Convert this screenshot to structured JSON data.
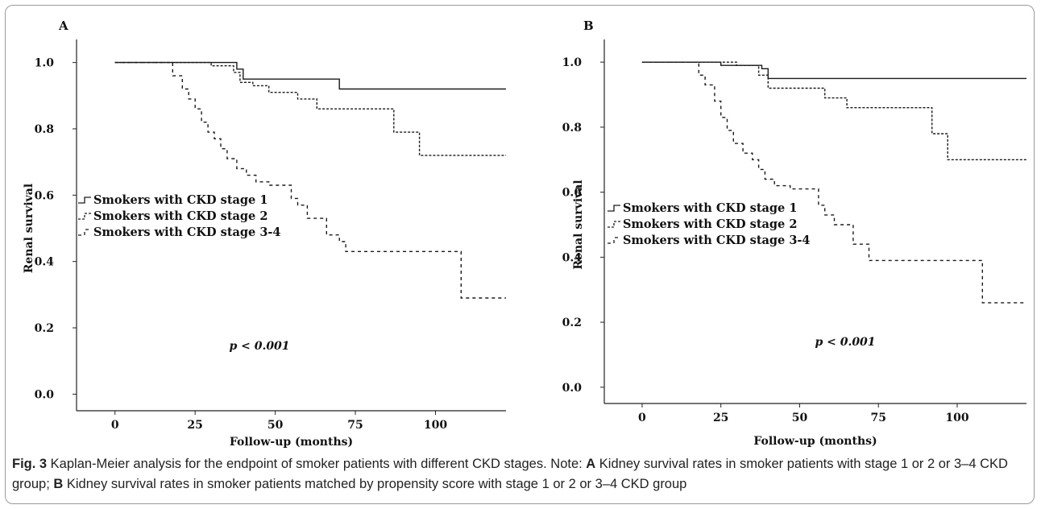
{
  "chart_data": [
    {
      "type": "line",
      "panel_label": "A",
      "xlabel": "Follow-up (months)",
      "ylabel": "Renal survival",
      "xlim": [
        -12,
        122
      ],
      "ylim": [
        -0.05,
        1.05
      ],
      "xticks": [
        0,
        25,
        50,
        75,
        100
      ],
      "yticks": [
        0.0,
        0.2,
        0.4,
        0.6,
        0.8,
        1.0
      ],
      "annotation": "p < 0.001",
      "legend_position": "left",
      "series": [
        {
          "name": "Smokers with CKD stage 1",
          "dash": "solid",
          "x": [
            0,
            38,
            38,
            40,
            40,
            70,
            70,
            122
          ],
          "y": [
            1.0,
            1.0,
            0.98,
            0.98,
            0.95,
            0.95,
            0.92,
            0.92
          ]
        },
        {
          "name": "Smokers with CKD stage 2",
          "dash": "dotted",
          "x": [
            0,
            30,
            30,
            37,
            37,
            39,
            39,
            43,
            43,
            48,
            48,
            57,
            57,
            63,
            63,
            87,
            87,
            95,
            95,
            122
          ],
          "y": [
            1.0,
            1.0,
            0.99,
            0.99,
            0.97,
            0.97,
            0.94,
            0.94,
            0.93,
            0.93,
            0.91,
            0.91,
            0.89,
            0.89,
            0.86,
            0.86,
            0.79,
            0.79,
            0.72,
            0.72
          ]
        },
        {
          "name": "Smokers with CKD stage 3-4",
          "dash": "dashed",
          "x": [
            0,
            18,
            18,
            21,
            21,
            23,
            23,
            25,
            25,
            27,
            27,
            29,
            29,
            31,
            31,
            33,
            33,
            35,
            35,
            38,
            38,
            41,
            41,
            44,
            44,
            48,
            48,
            55,
            55,
            57,
            57,
            60,
            60,
            66,
            66,
            70,
            70,
            72,
            72,
            108,
            108,
            122
          ],
          "y": [
            1.0,
            1.0,
            0.96,
            0.96,
            0.92,
            0.92,
            0.89,
            0.89,
            0.86,
            0.86,
            0.82,
            0.82,
            0.79,
            0.79,
            0.77,
            0.77,
            0.74,
            0.74,
            0.71,
            0.71,
            0.68,
            0.68,
            0.66,
            0.66,
            0.64,
            0.64,
            0.63,
            0.63,
            0.59,
            0.59,
            0.57,
            0.57,
            0.53,
            0.53,
            0.48,
            0.48,
            0.46,
            0.46,
            0.43,
            0.43,
            0.29,
            0.29
          ]
        }
      ]
    },
    {
      "type": "line",
      "panel_label": "B",
      "xlabel": "Follow-up (months)",
      "ylabel": "Renal survival",
      "xlim": [
        -12,
        122
      ],
      "ylim": [
        -0.05,
        1.05
      ],
      "xticks": [
        0,
        25,
        50,
        75,
        100
      ],
      "yticks": [
        0.0,
        0.2,
        0.4,
        0.6,
        0.8,
        1.0
      ],
      "annotation": "p < 0.001",
      "legend_position": "left",
      "series": [
        {
          "name": "Smokers with CKD stage 1",
          "dash": "solid",
          "x": [
            0,
            25,
            25,
            38,
            38,
            40,
            40,
            122
          ],
          "y": [
            1.0,
            1.0,
            0.99,
            0.99,
            0.98,
            0.98,
            0.95,
            0.95
          ]
        },
        {
          "name": "Smokers with CKD stage 2",
          "dash": "dotted",
          "x": [
            0,
            30,
            30,
            37,
            37,
            40,
            40,
            58,
            58,
            65,
            65,
            92,
            92,
            97,
            97,
            122
          ],
          "y": [
            1.0,
            1.0,
            0.99,
            0.99,
            0.96,
            0.96,
            0.92,
            0.92,
            0.89,
            0.89,
            0.86,
            0.86,
            0.78,
            0.78,
            0.7,
            0.7
          ]
        },
        {
          "name": "Smokers with CKD stage 3-4",
          "dash": "dashed",
          "x": [
            0,
            18,
            18,
            20,
            20,
            23,
            23,
            25,
            25,
            27,
            27,
            29,
            29,
            32,
            32,
            35,
            35,
            37,
            37,
            39,
            39,
            42,
            42,
            47,
            47,
            56,
            56,
            58,
            58,
            61,
            61,
            67,
            67,
            72,
            72,
            108,
            108,
            122
          ],
          "y": [
            1.0,
            1.0,
            0.96,
            0.96,
            0.93,
            0.93,
            0.88,
            0.88,
            0.83,
            0.83,
            0.79,
            0.79,
            0.75,
            0.75,
            0.72,
            0.72,
            0.7,
            0.7,
            0.67,
            0.67,
            0.64,
            0.64,
            0.62,
            0.62,
            0.61,
            0.61,
            0.56,
            0.56,
            0.53,
            0.53,
            0.5,
            0.5,
            0.44,
            0.44,
            0.39,
            0.39,
            0.26,
            0.26
          ]
        }
      ]
    }
  ],
  "caption": {
    "fig_label": "Fig. 3",
    "intro": " Kaplan-Meier analysis for the endpoint of smoker patients with different CKD stages. Note: ",
    "a_label": "A",
    "a_text": " Kidney survival rates in smoker patients with stage 1 or 2 or 3–4 CKD group; ",
    "b_label": "B",
    "b_text": " Kidney survival rates in smoker patients matched by propensity score with stage 1 or 2 or 3–4 CKD group"
  }
}
